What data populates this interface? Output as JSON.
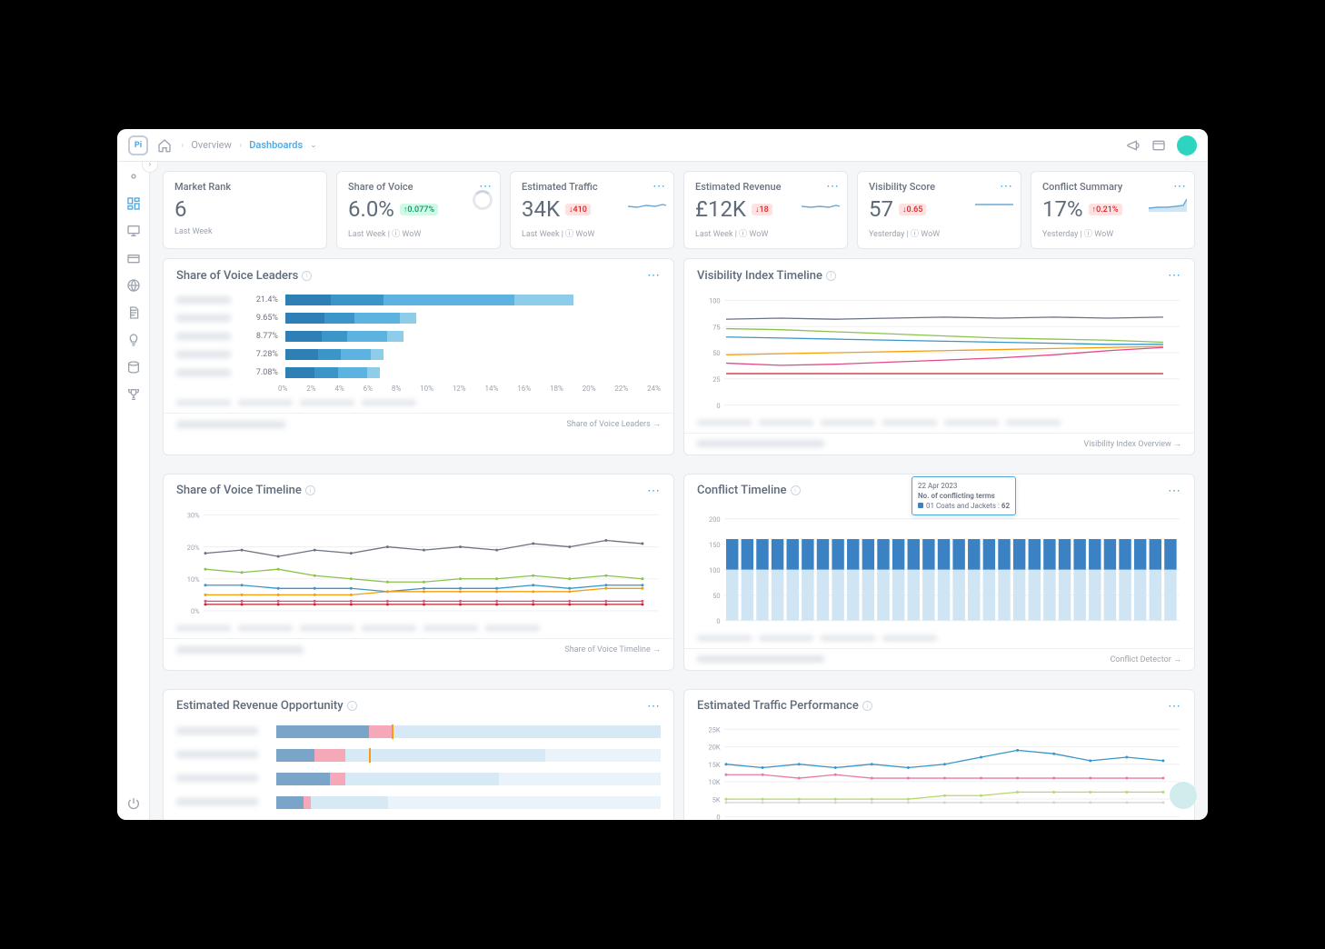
{
  "breadcrumb": {
    "root": "Overview",
    "current": "Dashboards"
  },
  "kpis": [
    {
      "label": "Market Rank",
      "value": "6",
      "badge": null,
      "sub": "Last Week",
      "spark": null,
      "donut": false
    },
    {
      "label": "Share of Voice",
      "value": "6.0%",
      "badge": {
        "dir": "up",
        "text": "↑0.077%"
      },
      "sub": "Last Week  |  ⓘ WoW",
      "spark": null,
      "donut": true
    },
    {
      "label": "Estimated Traffic",
      "value": "34K",
      "badge": {
        "dir": "down",
        "text": "↓410"
      },
      "sub": "Last Week  |  ⓘ WoW",
      "spark": {
        "color": "#6aa9d6",
        "pts": [
          0,
          6,
          10,
          5,
          20,
          7,
          30,
          6,
          38,
          8,
          42,
          7
        ]
      },
      "donut": false
    },
    {
      "label": "Estimated Revenue",
      "value": "£12K",
      "badge": {
        "dir": "down",
        "text": "↓18"
      },
      "sub": "Last Week  |  ⓘ WoW",
      "spark": {
        "color": "#6aa9d6",
        "pts": [
          0,
          6,
          10,
          5,
          20,
          6,
          30,
          5,
          38,
          7,
          42,
          6
        ]
      },
      "donut": false
    },
    {
      "label": "Visibility Score",
      "value": "57",
      "badge": {
        "dir": "down",
        "text": "↓0.65"
      },
      "sub": "Yesterday  |  ⓘ WoW",
      "spark": {
        "color": "#6aa9d6",
        "pts": [
          0,
          8,
          10,
          8,
          20,
          8,
          30,
          8,
          38,
          8,
          42,
          8
        ]
      },
      "donut": false
    },
    {
      "label": "Conflict Summary",
      "value": "17%",
      "badge": {
        "dir": "up-red",
        "text": "↑0.21%"
      },
      "sub": "Yesterday  |  ⓘ WoW",
      "spark": {
        "color": "#6aa9d6",
        "pts": [
          0,
          4,
          10,
          5,
          20,
          5,
          30,
          6,
          38,
          7,
          42,
          14
        ],
        "fill": true
      },
      "donut": false
    }
  ],
  "sov_leaders": {
    "title": "Share of Voice Leaders",
    "rows": [
      {
        "pct": "21.4%",
        "segs": [
          {
            "w": 14,
            "c": "#2d7fb5"
          },
          {
            "w": 16,
            "c": "#3b95c9"
          },
          {
            "w": 40,
            "c": "#5cb3e0"
          },
          {
            "w": 18,
            "c": "#8ecdea"
          }
        ]
      },
      {
        "pct": "9.65%",
        "segs": [
          {
            "w": 12,
            "c": "#2d7fb5"
          },
          {
            "w": 9,
            "c": "#3b95c9"
          },
          {
            "w": 14,
            "c": "#5cb3e0"
          },
          {
            "w": 5,
            "c": "#8ecdea"
          }
        ]
      },
      {
        "pct": "8.77%",
        "segs": [
          {
            "w": 11,
            "c": "#2d7fb5"
          },
          {
            "w": 8,
            "c": "#3b95c9"
          },
          {
            "w": 12,
            "c": "#5cb3e0"
          },
          {
            "w": 5,
            "c": "#8ecdea"
          }
        ]
      },
      {
        "pct": "7.28%",
        "segs": [
          {
            "w": 10,
            "c": "#2d7fb5"
          },
          {
            "w": 7,
            "c": "#3b95c9"
          },
          {
            "w": 9,
            "c": "#5cb3e0"
          },
          {
            "w": 4,
            "c": "#8ecdea"
          }
        ]
      },
      {
        "pct": "7.08%",
        "segs": [
          {
            "w": 9,
            "c": "#2d7fb5"
          },
          {
            "w": 7,
            "c": "#3b95c9"
          },
          {
            "w": 9,
            "c": "#5cb3e0"
          },
          {
            "w": 4,
            "c": "#8ecdea"
          }
        ]
      }
    ],
    "xticks": [
      "0%",
      "2%",
      "4%",
      "6%",
      "8%",
      "10%",
      "12%",
      "14%",
      "16%",
      "18%",
      "20%",
      "22%",
      "24%"
    ],
    "foot_link": "Share of Voice Leaders  →"
  },
  "visibility_timeline": {
    "title": "Visibility Index Timeline",
    "ylim": [
      0,
      100
    ],
    "yticks": [
      0,
      25,
      50,
      75,
      100
    ],
    "series": [
      {
        "c": "#6b7280",
        "pts": [
          0,
          82,
          60,
          83,
          120,
          82,
          180,
          83,
          240,
          84,
          300,
          83,
          360,
          84,
          420,
          83,
          480,
          84
        ]
      },
      {
        "c": "#8bc34a",
        "pts": [
          0,
          73,
          60,
          72,
          120,
          70,
          180,
          68,
          240,
          66,
          300,
          64,
          360,
          63,
          420,
          62,
          480,
          60
        ]
      },
      {
        "c": "#3b95c9",
        "pts": [
          0,
          65,
          60,
          64,
          120,
          63,
          180,
          62,
          240,
          61,
          300,
          60,
          360,
          59,
          420,
          58,
          480,
          58
        ]
      },
      {
        "c": "#f59e0b",
        "pts": [
          0,
          48,
          60,
          49,
          120,
          50,
          180,
          51,
          240,
          52,
          300,
          53,
          360,
          54,
          420,
          55,
          480,
          56
        ]
      },
      {
        "c": "#e04a8a",
        "pts": [
          0,
          40,
          60,
          38,
          120,
          39,
          180,
          41,
          240,
          43,
          300,
          45,
          360,
          48,
          420,
          52,
          480,
          55
        ]
      },
      {
        "c": "#c2242f",
        "pts": [
          0,
          30,
          60,
          30,
          120,
          30,
          180,
          30,
          240,
          30,
          300,
          30,
          360,
          30,
          420,
          30,
          480,
          30
        ]
      }
    ],
    "foot_link": "Visibility Index Overview  →"
  },
  "sov_timeline": {
    "title": "Share of Voice Timeline",
    "ylim": [
      0,
      30
    ],
    "yticks": [
      "0%",
      "10%",
      "20%",
      "30%"
    ],
    "series": [
      {
        "c": "#6b7280",
        "pts": [
          0,
          18,
          40,
          19,
          80,
          17,
          120,
          19,
          160,
          18,
          200,
          20,
          240,
          19,
          280,
          20,
          320,
          19,
          360,
          21,
          400,
          20,
          440,
          22,
          480,
          21
        ]
      },
      {
        "c": "#8bc34a",
        "pts": [
          0,
          13,
          40,
          12,
          80,
          13,
          120,
          11,
          160,
          10,
          200,
          9,
          240,
          9,
          280,
          10,
          320,
          10,
          360,
          11,
          400,
          10,
          440,
          11,
          480,
          10
        ]
      },
      {
        "c": "#3b95c9",
        "pts": [
          0,
          8,
          40,
          8,
          80,
          7,
          120,
          7,
          160,
          7,
          200,
          6,
          240,
          7,
          280,
          7,
          320,
          7,
          360,
          8,
          400,
          7,
          440,
          8,
          480,
          8
        ]
      },
      {
        "c": "#f59e0b",
        "pts": [
          0,
          5,
          40,
          5,
          80,
          5,
          120,
          5,
          160,
          5,
          200,
          6,
          240,
          6,
          280,
          6,
          320,
          6,
          360,
          6,
          400,
          6,
          440,
          7,
          480,
          7
        ]
      },
      {
        "c": "#e04a8a",
        "pts": [
          0,
          3,
          40,
          3,
          80,
          3,
          120,
          3,
          160,
          3,
          200,
          3,
          240,
          3,
          280,
          3,
          320,
          3,
          360,
          3,
          400,
          3,
          440,
          3,
          480,
          3
        ]
      },
      {
        "c": "#c2242f",
        "pts": [
          0,
          2,
          40,
          2,
          80,
          2,
          120,
          2,
          160,
          2,
          200,
          2,
          240,
          2,
          280,
          2,
          320,
          2,
          360,
          2,
          400,
          2,
          440,
          2,
          480,
          2
        ]
      }
    ],
    "foot_link": "Share of Voice Timeline  →"
  },
  "conflict_timeline": {
    "title": "Conflict Timeline",
    "ylim": [
      0,
      200
    ],
    "yticks": [
      0,
      50,
      100,
      150,
      200
    ],
    "tooltip": {
      "date": "22 Apr 2023",
      "subtitle": "No. of conflicting terms",
      "item": "01 Coats and Jackets :",
      "val": "62"
    },
    "bars_count": 30,
    "bar_top": 160,
    "bar_bottom": 100,
    "bar_top_color": "#3b82c4",
    "bar_bottom_color": "#cfe5f3",
    "foot_link": "Conflict Detector  →"
  },
  "revenue_opp": {
    "title": "Estimated Revenue Opportunity",
    "rows": [
      {
        "blue": 24,
        "pink": 6,
        "light": 70,
        "marker": 30
      },
      {
        "blue": 10,
        "pink": 8,
        "light": 52,
        "marker": 24
      },
      {
        "blue": 14,
        "pink": 4,
        "light": 40,
        "marker": 0
      },
      {
        "blue": 7,
        "pink": 2,
        "light": 20,
        "marker": 0
      }
    ],
    "colors": {
      "blue": "#7aa4c8",
      "pink": "#f4a8b8",
      "light": "#d6e9f5"
    }
  },
  "traffic_perf": {
    "title": "Estimated Traffic Performance",
    "ylim": [
      0,
      25000
    ],
    "yticks": [
      "0",
      "5K",
      "10K",
      "15K",
      "20K",
      "25K"
    ],
    "series": [
      {
        "c": "#3b95c9",
        "pts": [
          0,
          15,
          40,
          14,
          80,
          15,
          120,
          14,
          160,
          15,
          200,
          14,
          240,
          15,
          280,
          17,
          320,
          19,
          360,
          18,
          400,
          16,
          440,
          17,
          480,
          16
        ]
      },
      {
        "c": "#e879a9",
        "pts": [
          0,
          12,
          40,
          12,
          80,
          11,
          120,
          12,
          160,
          11,
          200,
          11,
          240,
          11,
          280,
          11,
          320,
          11,
          360,
          11,
          400,
          11,
          440,
          11,
          480,
          11
        ]
      },
      {
        "c": "#b6d66f",
        "pts": [
          0,
          5,
          40,
          5,
          80,
          5,
          120,
          5,
          160,
          5,
          200,
          5,
          240,
          6,
          280,
          6,
          320,
          7,
          360,
          7,
          400,
          7,
          440,
          7,
          480,
          7
        ]
      },
      {
        "c": "#d4d4d4",
        "pts": [
          0,
          4,
          40,
          4,
          80,
          4,
          120,
          4,
          160,
          4,
          200,
          4,
          240,
          4,
          280,
          4,
          320,
          4,
          360,
          4,
          400,
          4,
          440,
          4,
          480,
          4
        ]
      }
    ]
  }
}
